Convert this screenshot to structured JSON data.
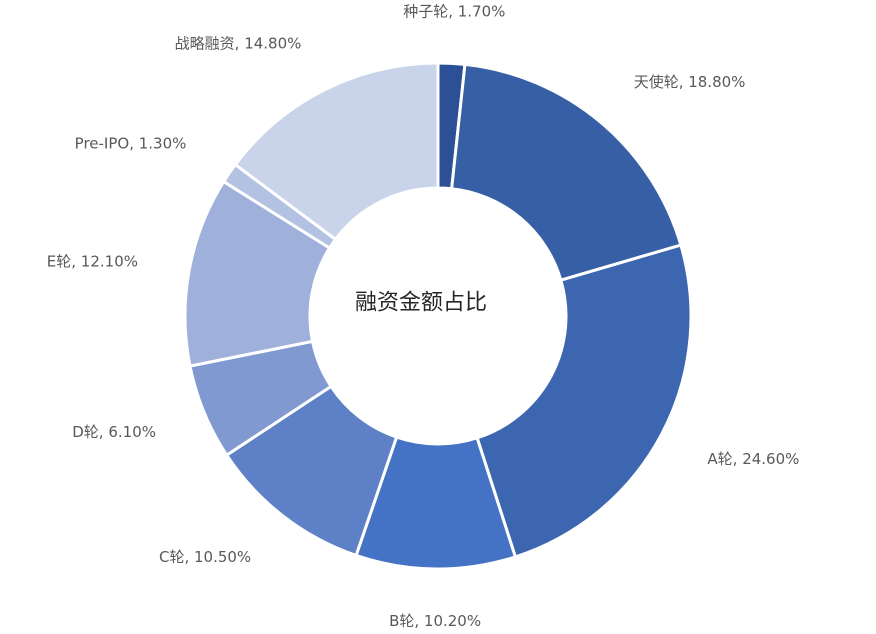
{
  "chart_data": {
    "type": "pie",
    "variant": "donut",
    "title": "融资金额占比",
    "value_format": "percent",
    "categories": [
      "种子轮",
      "天使轮",
      "A轮",
      "B轮",
      "C轮",
      "D轮",
      "E轮",
      "Pre-IPO",
      "战略融资"
    ],
    "values": [
      1.7,
      18.8,
      24.6,
      10.2,
      10.5,
      6.1,
      12.1,
      1.3,
      14.8
    ],
    "labels": [
      "种子轮, 1.70%",
      "天使轮, 18.80%",
      "A轮, 24.60%",
      "B轮, 10.20%",
      "C轮, 10.50%",
      "D轮, 6.10%",
      "E轮, 12.10%",
      "Pre-IPO, 1.30%",
      "战略融资, 14.80%"
    ],
    "colors": [
      "#2c5096",
      "#365fa6",
      "#3c66b0",
      "#4472c4",
      "#5e80c6",
      "#8099d1",
      "#9fb0da",
      "#b3c1e2",
      "#c9d3ea"
    ],
    "start": "12 o'clock",
    "direction": "clockwise",
    "legend": "none"
  }
}
